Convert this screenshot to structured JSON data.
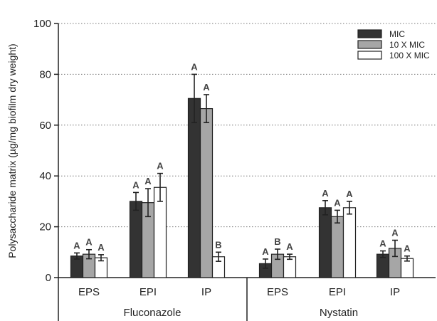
{
  "chart_data": {
    "type": "bar",
    "ylabel": "Polysaccharide matrix (µg/mg biofilm dry weight)",
    "ylim": [
      0,
      100
    ],
    "yticks": [
      0,
      20,
      40,
      60,
      80,
      100
    ],
    "grid": "horizontal-dotted",
    "legend_position": "top-right",
    "groups": [
      {
        "name": "Fluconazole",
        "categories": [
          "EPS",
          "EPI",
          "IP"
        ]
      },
      {
        "name": "Nystatin",
        "categories": [
          "EPS",
          "EPI",
          "IP"
        ]
      }
    ],
    "series": [
      {
        "name": "MIC",
        "color": "#333333",
        "values": [
          8.5,
          30,
          70.5,
          5.5,
          27.5,
          9.2
        ],
        "errors": [
          1.2,
          3.5,
          9.5,
          1.8,
          2.8,
          1.3
        ],
        "labels": [
          "A",
          "A",
          "A",
          "A",
          "A",
          "A"
        ]
      },
      {
        "name": "10 X MIC",
        "color": "#a6a6a6",
        "values": [
          9.2,
          29.5,
          66.5,
          9.2,
          24,
          11.5
        ],
        "errors": [
          1.8,
          5.5,
          5.5,
          2,
          2.5,
          3.2
        ],
        "labels": [
          "A",
          "A",
          "A",
          "B",
          "A",
          "A"
        ]
      },
      {
        "name": "100 X MIC",
        "color": "#ffffff",
        "values": [
          7.8,
          35.5,
          8.2,
          8.2,
          27.5,
          7.5
        ],
        "errors": [
          1.2,
          5.5,
          1.8,
          1,
          2.5,
          1
        ],
        "labels": [
          "A",
          "A",
          "B",
          "A",
          "A",
          "A"
        ]
      }
    ]
  }
}
